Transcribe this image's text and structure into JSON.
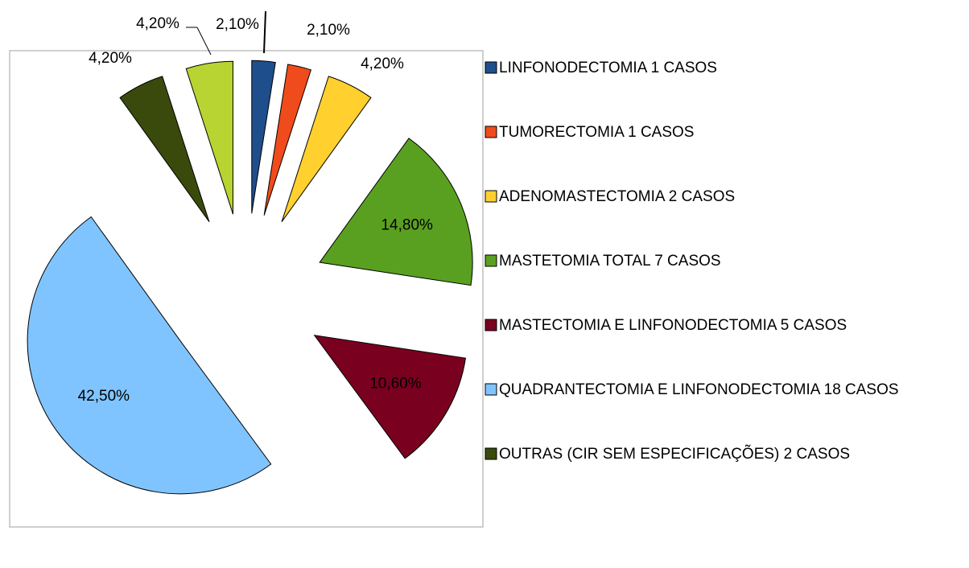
{
  "chart_data": {
    "type": "pie",
    "categories": [
      "LINFONODECTOMIA 1 CASOS",
      "TUMORECTOMIA 1 CASOS",
      "ADENOMASTECTOMIA 2 CASOS",
      "MASTETOMIA TOTAL 7 CASOS",
      "MASTECTOMIA E LINFONODECTOMIA 5 CASOS",
      "QUADRANTECTOMIA E LINFONODECTOMIA 18 CASOS",
      "OUTRAS (CIR SEM ESPECIFICAÇÕES) 2 CASOS",
      null
    ],
    "values": [
      2.1,
      2.1,
      4.2,
      14.8,
      10.6,
      42.5,
      4.2,
      4.2
    ],
    "value_labels": [
      "2,10%",
      "2,10%",
      "4,20%",
      "14,80%",
      "10,60%",
      "42,50%",
      "4,20%",
      "4,20%"
    ],
    "colors": [
      "#1f4e8c",
      "#f04b1c",
      "#ffd02e",
      "#5aa020",
      "#7a0020",
      "#80c4ff",
      "#3a4a0c",
      "#b8d432"
    ],
    "legend": "right"
  }
}
